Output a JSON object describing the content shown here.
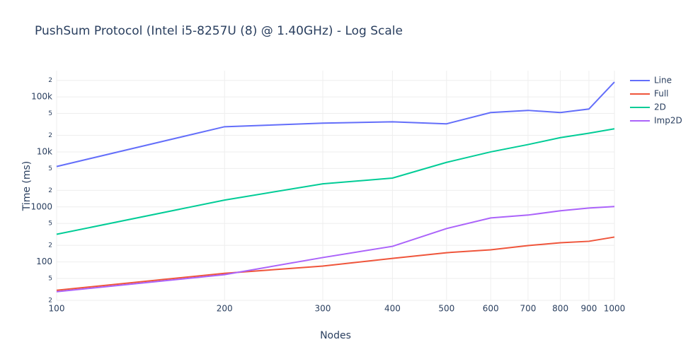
{
  "chart_data": {
    "type": "line",
    "title": "PushSum Protocol (Intel i5-8257U (8) @ 1.40GHz) - Log Scale",
    "xlabel": "Nodes",
    "ylabel": "Time (ms)",
    "x": [
      100,
      200,
      300,
      400,
      500,
      600,
      700,
      800,
      900,
      1000
    ],
    "series": [
      {
        "name": "Line",
        "color": "#636efa",
        "values": [
          5430,
          28700,
          33300,
          35300,
          32400,
          52000,
          56900,
          52000,
          60200,
          186700
        ]
      },
      {
        "name": "Full",
        "color": "#ef553b",
        "values": [
          30.5,
          62,
          84,
          116,
          147,
          166,
          198,
          223,
          237,
          283
        ]
      },
      {
        "name": "2D",
        "color": "#00cc96",
        "values": [
          318,
          1330,
          2630,
          3340,
          6450,
          10000,
          13600,
          18200,
          21900,
          26300
        ]
      },
      {
        "name": "Imp2D",
        "color": "#ab63fa",
        "values": [
          28.7,
          58.6,
          120,
          192,
          404,
          631,
          711,
          850,
          955,
          1014
        ]
      }
    ],
    "xlog": true,
    "ylog": true,
    "xlim": [
      100,
      1000
    ],
    "ylim": [
      20,
      300000
    ],
    "xticks": [
      100,
      200,
      300,
      400,
      500,
      600,
      700,
      800,
      900,
      1000
    ],
    "yticks": [
      {
        "value": 20,
        "label": "2"
      },
      {
        "value": 50,
        "label": "5"
      },
      100,
      {
        "value": 200,
        "label": "2"
      },
      {
        "value": 500,
        "label": "5"
      },
      1000,
      {
        "value": 2000,
        "label": "2"
      },
      {
        "value": 5000,
        "label": "5"
      },
      {
        "value": 10000,
        "label": "10k"
      },
      {
        "value": 20000,
        "label": "2"
      },
      {
        "value": 50000,
        "label": "5"
      },
      {
        "value": 100000,
        "label": "100k"
      },
      {
        "value": 200000,
        "label": "2"
      }
    ],
    "grid": true,
    "legend": "right"
  }
}
